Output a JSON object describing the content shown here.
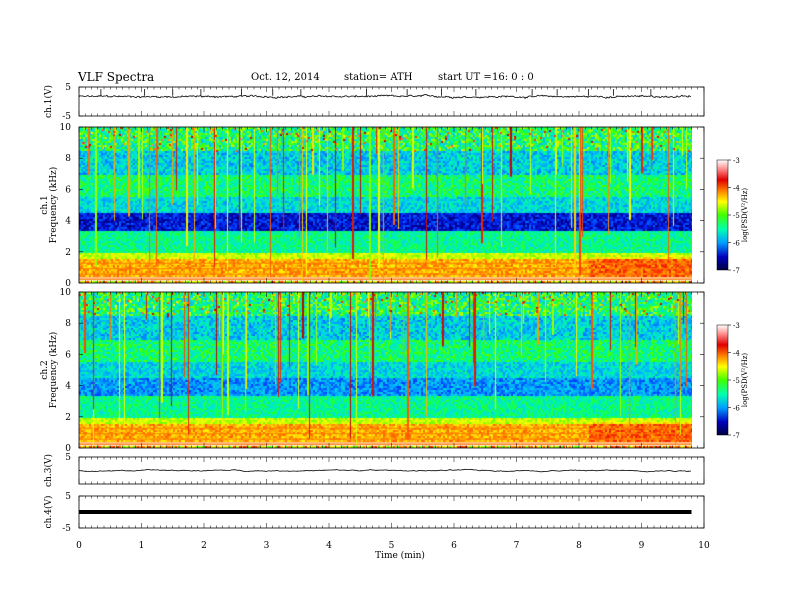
{
  "header": {
    "title": "VLF  Spectra",
    "date": "Oct. 12, 2014",
    "station": "station= ATH",
    "start_label": "start  UT  =",
    "start_value": "16: 0  : 0"
  },
  "chart_data": [
    {
      "type": "line",
      "ylabel": "ch.1(V)",
      "ylim": [
        -5,
        5
      ],
      "yticks": [
        5,
        -5
      ],
      "xlim": [
        0,
        10
      ],
      "x_end": 9.8,
      "description_values": {
        "baseline": 1.7,
        "noise_amplitude": 0.5
      },
      "spikes_x": [
        0.35,
        1.05,
        1.5,
        1.95,
        2.6,
        3.1,
        3.55,
        4.6,
        5.25,
        5.8,
        6.35,
        7.25,
        7.65,
        8.15,
        8.55,
        9.15
      ]
    },
    {
      "type": "heatmap",
      "ylabel": "ch.1\nFrequency (kHz)",
      "ylim": [
        0,
        10
      ],
      "yticks": [
        0,
        2,
        4,
        6,
        8,
        10
      ],
      "xlim": [
        0,
        10
      ],
      "x_end": 9.8,
      "colorbar": {
        "label": "log(PSD(V²/Hz)",
        "range": [
          -7,
          -3
        ],
        "ticks": [
          -3,
          -4,
          -5,
          -6,
          -7
        ]
      }
    },
    {
      "type": "heatmap",
      "ylabel": "ch.2\nFrequency (kHz)",
      "ylim": [
        0,
        10
      ],
      "yticks": [
        0,
        2,
        4,
        6,
        8,
        10
      ],
      "xlim": [
        0,
        10
      ],
      "x_end": 9.8,
      "colorbar": {
        "label": "log(PSD(V²/Hz)",
        "range": [
          -7,
          -3
        ],
        "ticks": [
          -3,
          -4,
          -5,
          -6,
          -7
        ]
      }
    },
    {
      "type": "line",
      "ylabel": "ch.3(V)",
      "ylim": [
        -5,
        5
      ],
      "yticks": [
        5
      ],
      "xlim": [
        0,
        10
      ],
      "x_end": 9.8,
      "description_values": {
        "baseline": 0.0,
        "noise_amplitude": 0.05
      }
    },
    {
      "type": "line",
      "ylabel": "ch.4(V)",
      "ylim": [
        -5,
        5
      ],
      "yticks": [
        5,
        -5
      ],
      "xlim": [
        0,
        10
      ],
      "x_end": 9.8,
      "description_values": {
        "baseline": 0.0,
        "noise_amplitude": 0.0
      }
    }
  ],
  "xaxis": {
    "label": "Time  (min)",
    "ticks": [
      "0",
      "1",
      "2",
      "3",
      "4",
      "5",
      "6",
      "7",
      "8",
      "9",
      "10"
    ]
  },
  "colors": {
    "colormap": [
      "#000040",
      "#0000a0",
      "#0030ff",
      "#00a0ff",
      "#00e0e0",
      "#00ff80",
      "#40ff00",
      "#c0ff00",
      "#ffff00",
      "#ffa000",
      "#ff3000",
      "#c00000",
      "#ff8080",
      "#ffffff"
    ]
  }
}
